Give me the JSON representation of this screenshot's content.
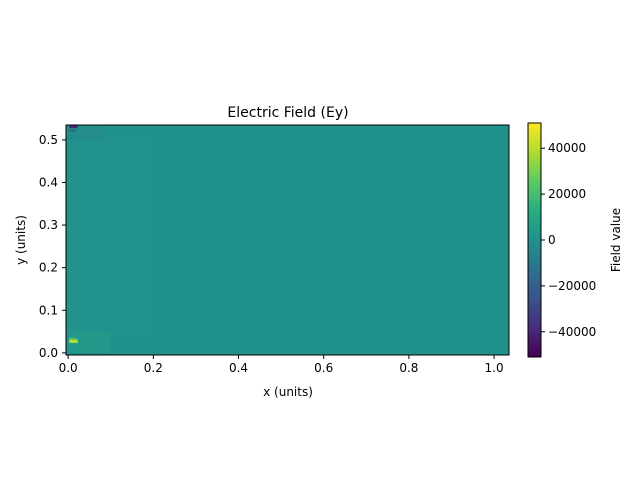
{
  "chart_data": {
    "type": "heatmap",
    "title": "Electric Field (Ey)",
    "xlabel": "x (units)",
    "ylabel": "y (units)",
    "xlim": [
      -0.005,
      1.035
    ],
    "ylim": [
      -0.005,
      0.535
    ],
    "x_ticks": [
      0.0,
      0.2,
      0.4,
      0.6,
      0.8,
      1.0
    ],
    "x_tick_labels": [
      "0.0",
      "0.2",
      "0.4",
      "0.6",
      "0.8",
      "1.0"
    ],
    "y_ticks": [
      0.0,
      0.1,
      0.2,
      0.3,
      0.4,
      0.5
    ],
    "y_tick_labels": [
      "0.0",
      "0.1",
      "0.2",
      "0.3",
      "0.4",
      "0.5"
    ],
    "colormap": "viridis",
    "background_value": 0,
    "features": [
      {
        "x": 0.0025,
        "y": 0.5275,
        "w": 0.02,
        "h": 0.008,
        "value": -40000
      },
      {
        "x": 0.0025,
        "y": 0.519,
        "w": 0.015,
        "h": 0.005,
        "value": -20000
      },
      {
        "x": 0.0,
        "y": 0.5,
        "w": 0.08,
        "h": 0.03,
        "value": -1800
      },
      {
        "x": 0.0025,
        "y": 0.0235,
        "w": 0.02,
        "h": 0.008,
        "value": 40000
      },
      {
        "x": 0.0025,
        "y": 0.031,
        "w": 0.015,
        "h": 0.005,
        "value": 20000
      },
      {
        "x": 0.0,
        "y": 0.0,
        "w": 0.1,
        "h": 0.05,
        "value": 2500
      },
      {
        "x": 0.0,
        "y": 0.05,
        "w": 0.2,
        "h": 0.45,
        "value": 500
      }
    ],
    "colorbar": {
      "label": "Field value",
      "range": [
        -51000,
        51000
      ],
      "ticks": [
        -40000,
        -20000,
        0,
        20000,
        40000
      ],
      "tick_labels": [
        "−40000",
        "−20000",
        "0",
        "20000",
        "40000"
      ]
    }
  }
}
